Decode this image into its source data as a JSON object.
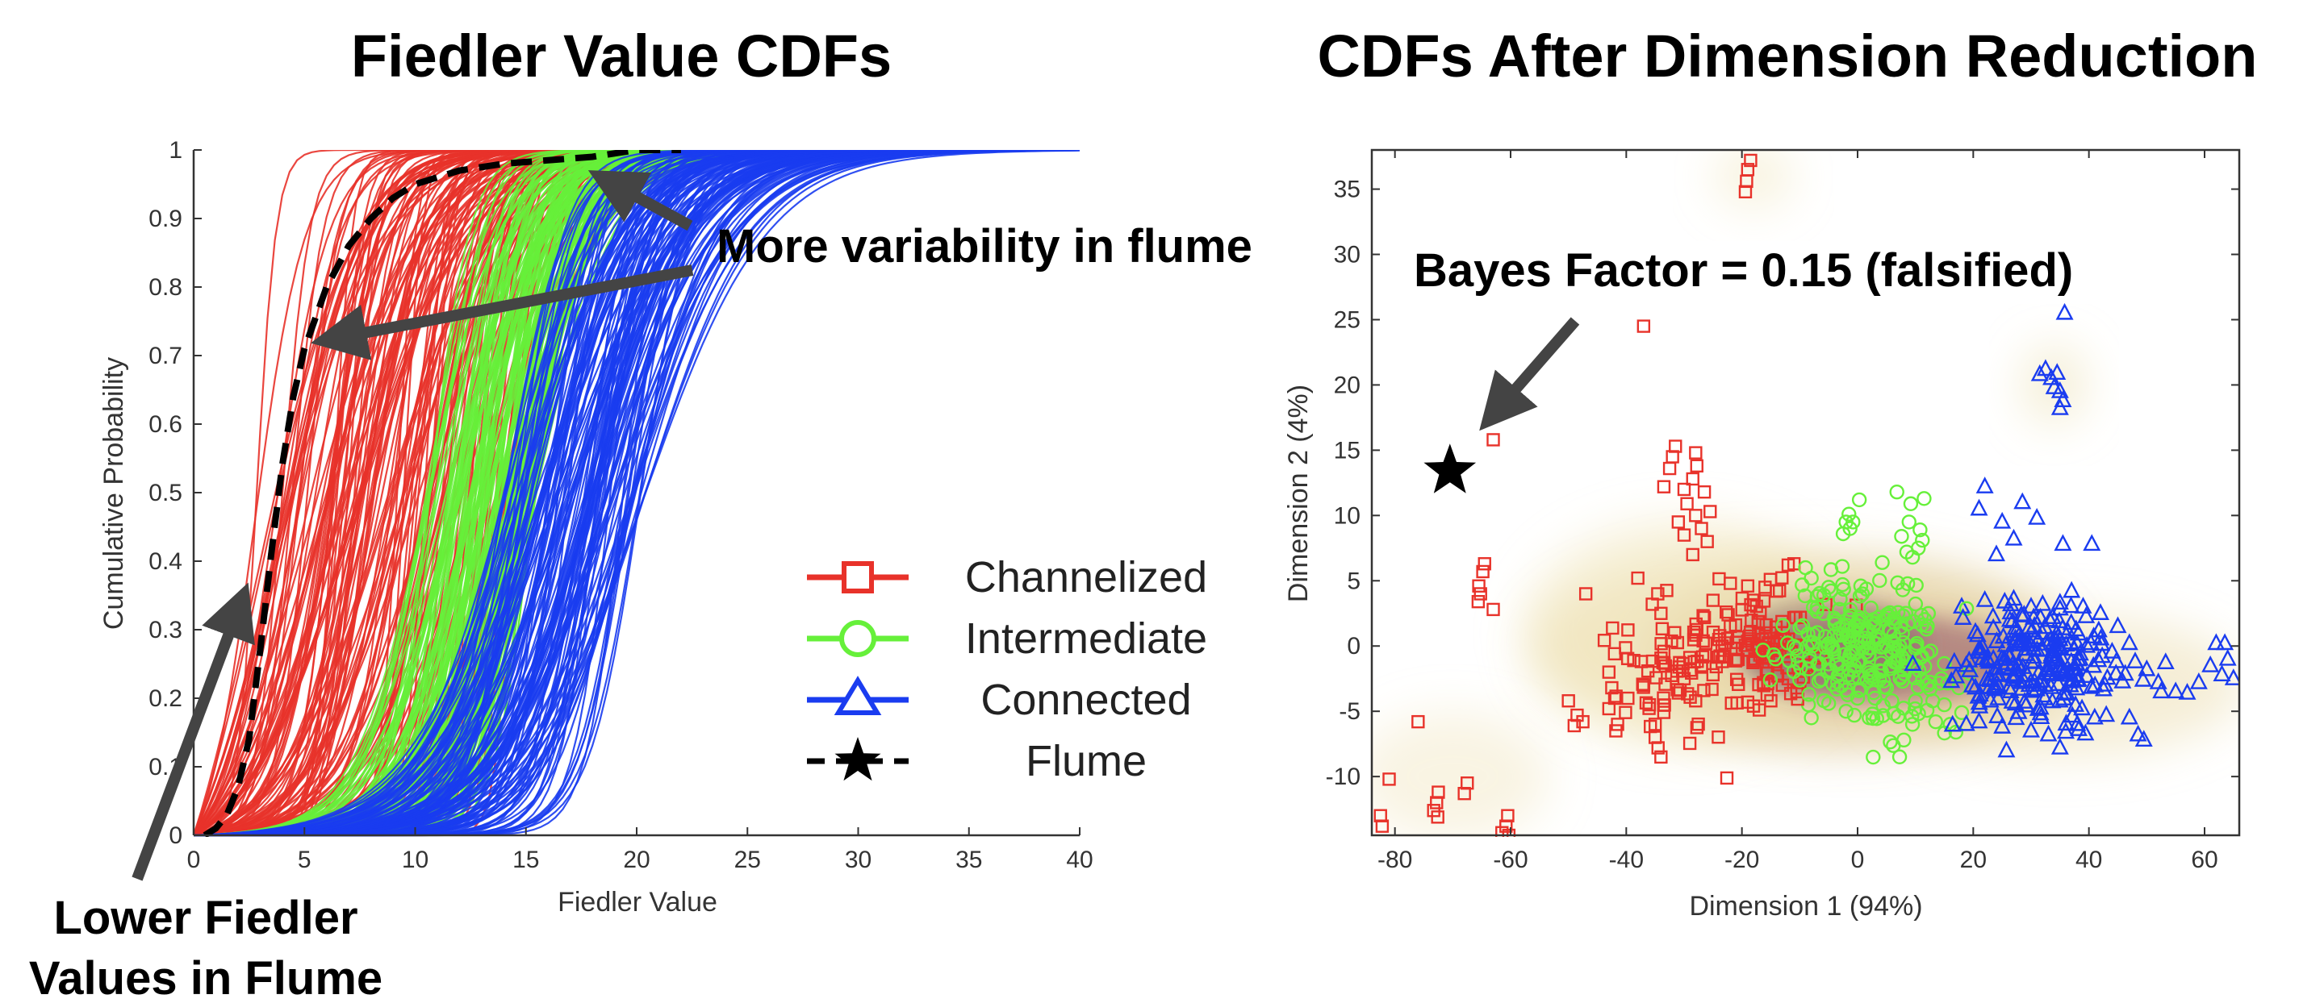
{
  "chart_data": [
    {
      "type": "line",
      "title": "Fiedler Value CDFs",
      "xlabel": "Fiedler Value",
      "ylabel": "Cumulative Probability",
      "xlim": [
        0,
        40
      ],
      "ylim": [
        0,
        1
      ],
      "xticks": [
        "0",
        "5",
        "10",
        "15",
        "20",
        "25",
        "30",
        "35",
        "40"
      ],
      "yticks": [
        "0",
        "0.1",
        "0.2",
        "0.3",
        "0.4",
        "0.5",
        "0.6",
        "0.7",
        "0.8",
        "0.9",
        "1"
      ],
      "series": [
        {
          "name": "Channelized",
          "color": "#e8322a",
          "curve_count": 150,
          "median_range": [
            2.6,
            14.5
          ],
          "spread_range": [
            0.4,
            2.6
          ]
        },
        {
          "name": "Intermediate",
          "color": "#66f03a",
          "curve_count": 130,
          "median_range": [
            10.5,
            15.5
          ],
          "spread_range": [
            0.8,
            2.0
          ]
        },
        {
          "name": "Connected",
          "color": "#1a3cf0",
          "curve_count": 130,
          "median_range": [
            14.0,
            20.5
          ],
          "spread_range": [
            0.8,
            2.8
          ]
        },
        {
          "name": "Flume",
          "color": "#000000",
          "style": "dashed",
          "x": [
            0.5,
            1,
            1.5,
            2,
            2.5,
            3,
            3.5,
            4,
            4.5,
            5,
            6,
            7,
            8,
            9,
            10,
            12,
            14,
            16,
            18,
            20,
            22
          ],
          "y": [
            0.0,
            0.01,
            0.03,
            0.07,
            0.14,
            0.27,
            0.41,
            0.54,
            0.64,
            0.71,
            0.8,
            0.86,
            0.9,
            0.93,
            0.95,
            0.97,
            0.98,
            0.985,
            0.99,
            1.0,
            1.0
          ]
        }
      ],
      "legend": {
        "placement": "lower-right",
        "entries": [
          "Channelized",
          "Intermediate",
          "Connected",
          "Flume"
        ]
      },
      "annotations": [
        {
          "text": "More variability in flume"
        },
        {
          "text_lines": [
            "Lower Fiedler",
            "Values in Flume"
          ]
        }
      ]
    },
    {
      "type": "scatter",
      "title": "CDFs After Dimension Reduction",
      "xlabel": "Dimension 1 (94%)",
      "ylabel": "Dimension 2 (4%)",
      "xlim": [
        -84,
        66
      ],
      "ylim": [
        -14.5,
        38
      ],
      "xticks": [
        "-80",
        "-60",
        "-40",
        "-20",
        "0",
        "20",
        "40",
        "60"
      ],
      "yticks": [
        "-10",
        "-5",
        "0",
        "5",
        "10",
        "15",
        "20",
        "25",
        "30",
        "35"
      ],
      "series": [
        {
          "name": "Channelized",
          "marker": "square",
          "color": "#e8322a",
          "points": [
            [
              -19,
              36.5
            ],
            [
              -18.5,
              37.2
            ],
            [
              -19.2,
              35.6
            ],
            [
              -19.4,
              34.8
            ],
            [
              -37,
              24.5
            ],
            [
              -63,
              15.8
            ],
            [
              -32,
              14.5
            ],
            [
              -31.5,
              15.3
            ],
            [
              -32.5,
              13.6
            ],
            [
              -33.5,
              12.2
            ],
            [
              -28,
              14.8
            ],
            [
              -27.8,
              13.8
            ],
            [
              -28.5,
              12.8
            ],
            [
              -30,
              12
            ],
            [
              -26.5,
              11.8
            ],
            [
              -29.5,
              10.9
            ],
            [
              -25.5,
              10.3
            ],
            [
              -28,
              10
            ],
            [
              -31,
              9.5
            ],
            [
              -27,
              9
            ],
            [
              -30,
              8.5
            ],
            [
              -26,
              8
            ],
            [
              -28.5,
              7
            ],
            [
              -64.5,
              6.3
            ],
            [
              -64.8,
              5.7
            ],
            [
              -65.5,
              4.6
            ],
            [
              -65.2,
              4
            ],
            [
              -65.6,
              3.4
            ],
            [
              -63,
              2.8
            ],
            [
              -38,
              5.2
            ],
            [
              -47,
              4
            ],
            [
              -35.5,
              3.2
            ],
            [
              -34,
              2.5
            ],
            [
              -25,
              3.5
            ],
            [
              -22,
              4.8
            ],
            [
              -19,
              4.6
            ],
            [
              -16,
              4.5
            ],
            [
              -14,
              4.2
            ],
            [
              -12,
              6.2
            ],
            [
              -11,
              6.3
            ],
            [
              -76,
              -5.8
            ],
            [
              -81,
              -10.2
            ],
            [
              -82.5,
              -13
            ],
            [
              -82.2,
              -13.8
            ],
            [
              -72.5,
              -11.2
            ],
            [
              -72.8,
              -12
            ],
            [
              -73.3,
              -12.6
            ],
            [
              -72.6,
              -13.1
            ],
            [
              -67.5,
              -10.5
            ],
            [
              -68,
              -11.3
            ],
            [
              -60.5,
              -13
            ],
            [
              -60.8,
              -13.8
            ],
            [
              -61.5,
              -14.3
            ],
            [
              -60.3,
              -14.5
            ],
            [
              -50,
              -4.2
            ],
            [
              -48.5,
              -5.3
            ],
            [
              -47.5,
              -5.8
            ],
            [
              -49,
              -6.1
            ],
            [
              -43,
              -2
            ],
            [
              -42.5,
              -3.2
            ],
            [
              -42,
              -4
            ],
            [
              -43,
              -4.8
            ],
            [
              -41.5,
              -6
            ],
            [
              -41.8,
              -6.5
            ],
            [
              -37,
              -3
            ],
            [
              -36,
              -4.5
            ],
            [
              -35,
              -6
            ],
            [
              -35,
              -7
            ],
            [
              -34.5,
              -7.8
            ],
            [
              -34,
              -8.5
            ],
            [
              -30,
              -2.5
            ],
            [
              -31,
              -3.6
            ],
            [
              -28,
              -4.2
            ],
            [
              -27,
              -1.5
            ],
            [
              -25,
              -2.2
            ],
            [
              -24,
              0.5
            ],
            [
              -23,
              -0.8
            ],
            [
              -22,
              1.5
            ],
            [
              -21,
              -0.2
            ],
            [
              -19,
              -4.3
            ],
            [
              -18,
              -4.6
            ],
            [
              -17,
              -4.9
            ],
            [
              -15,
              -4.2
            ],
            [
              -13,
              -3
            ],
            [
              -12,
              -2.5
            ],
            [
              -10.5,
              -3.5
            ],
            [
              -10,
              -2.8
            ]
          ]
        },
        {
          "name": "Intermediate",
          "marker": "circle",
          "color": "#66f03a",
          "points": [
            [
              0.3,
              11.2
            ],
            [
              -0.8,
              9.5
            ],
            [
              -1.5,
              10.1
            ],
            [
              -2,
              9.5
            ],
            [
              -2.5,
              8.6
            ],
            [
              -1.3,
              9
            ],
            [
              6.8,
              11.8
            ],
            [
              9.2,
              10.9
            ],
            [
              11.5,
              11.3
            ],
            [
              8.9,
              9.5
            ],
            [
              7.6,
              8.4
            ],
            [
              10.8,
              8.9
            ],
            [
              11.2,
              8.1
            ],
            [
              10.5,
              7.5
            ],
            [
              8.5,
              7.2
            ],
            [
              9.5,
              6.8
            ],
            [
              -9,
              6
            ],
            [
              -8,
              5.2
            ],
            [
              -5,
              4.5
            ],
            [
              -7,
              3.8
            ],
            [
              -3,
              3.6
            ],
            [
              -8.5,
              -4.5
            ],
            [
              -8,
              -5.5
            ],
            [
              -5,
              -4.4
            ],
            [
              -2,
              -5
            ],
            [
              0,
              -4
            ],
            [
              2,
              -5.5
            ],
            [
              3,
              -4
            ],
            [
              5,
              -3.2
            ],
            [
              7,
              -5.4
            ],
            [
              8,
              -7.2
            ],
            [
              9.5,
              -6
            ],
            [
              10,
              -4.2
            ],
            [
              12,
              -3
            ],
            [
              13,
              -4.2
            ],
            [
              13.5,
              -5.8
            ],
            [
              15,
              -4.5
            ],
            [
              16,
              -6
            ],
            [
              17,
              -6.6
            ],
            [
              18,
              -5.1
            ],
            [
              14.5,
              -2.5
            ],
            [
              17.5,
              -3.2
            ]
          ]
        },
        {
          "name": "Connected",
          "marker": "triangle",
          "color": "#1a3cf0",
          "points": [
            [
              35.8,
              25.5
            ],
            [
              31.5,
              20.8
            ],
            [
              32.5,
              21.2
            ],
            [
              33.5,
              20.5
            ],
            [
              34.5,
              20.9
            ],
            [
              35,
              19.5
            ],
            [
              34,
              19.8
            ],
            [
              35.5,
              18.8
            ],
            [
              35,
              18.2
            ],
            [
              22,
              12.2
            ],
            [
              21,
              10.5
            ],
            [
              25,
              9.5
            ],
            [
              27,
              8.2
            ],
            [
              28.5,
              11
            ],
            [
              31,
              9.8
            ],
            [
              24,
              7
            ],
            [
              35.5,
              7.8
            ],
            [
              40.5,
              7.8
            ],
            [
              18,
              3
            ],
            [
              22,
              3.5
            ],
            [
              27,
              3.6
            ],
            [
              30,
              3
            ],
            [
              32,
              3.2
            ],
            [
              35,
              3.3
            ],
            [
              37,
              4.2
            ],
            [
              39,
              3
            ],
            [
              42,
              2.5
            ],
            [
              45,
              1.5
            ],
            [
              47,
              0.2
            ],
            [
              48,
              -1.2
            ],
            [
              50,
              -1.8
            ],
            [
              52,
              -2.8
            ],
            [
              52.5,
              -3.5
            ],
            [
              47,
              -5.5
            ],
            [
              48.5,
              -6.8
            ],
            [
              49.5,
              -7.2
            ],
            [
              55,
              -3.5
            ],
            [
              57,
              -3.6
            ],
            [
              59,
              -2.8
            ],
            [
              61,
              -1.5
            ],
            [
              62,
              0.2
            ],
            [
              63.5,
              0.2
            ],
            [
              64,
              -1
            ],
            [
              63,
              -2.2
            ],
            [
              65,
              -2.5
            ],
            [
              18.8,
              -6
            ],
            [
              21,
              -5.8
            ],
            [
              25,
              -6.2
            ],
            [
              30,
              -6.5
            ],
            [
              33,
              -6.8
            ],
            [
              35,
              -7.8
            ],
            [
              36,
              -6.6
            ],
            [
              38,
              -6
            ],
            [
              41,
              -5.5
            ],
            [
              43,
              -5.3
            ]
          ]
        }
      ],
      "flume_point": [
        -70.5,
        13.4
      ],
      "annotations": [
        {
          "text": "Bayes Factor = 0.15 (falsified)"
        }
      ]
    }
  ]
}
